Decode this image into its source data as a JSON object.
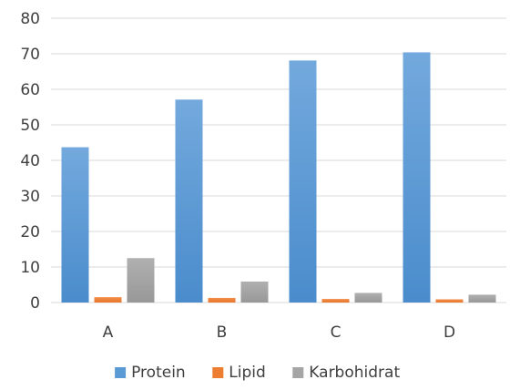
{
  "chart_data": {
    "type": "bar",
    "title": "",
    "xlabel": "",
    "ylabel": "",
    "categories": [
      "A",
      "B",
      "C",
      "D"
    ],
    "ylim": [
      0,
      80
    ],
    "yticks": [
      0,
      10,
      20,
      30,
      40,
      50,
      60,
      70,
      80
    ],
    "grid": true,
    "legend_position": "bottom",
    "series": [
      {
        "name": "Protein",
        "values": [
          43.7,
          57.1,
          68.1,
          70.4
        ],
        "color": "#5b9bd5"
      },
      {
        "name": "Lipid",
        "values": [
          1.5,
          1.3,
          1.0,
          0.9
        ],
        "color": "#ed7d31"
      },
      {
        "name": "Karbohidrat",
        "values": [
          12.5,
          5.9,
          2.7,
          2.2
        ],
        "color": "#a5a5a5"
      }
    ]
  }
}
